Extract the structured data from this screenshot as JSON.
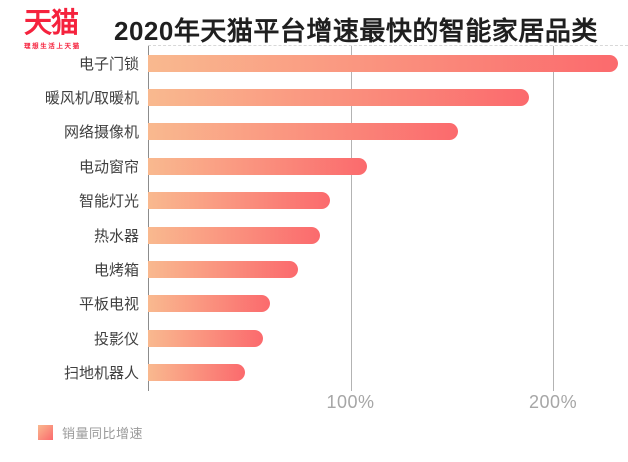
{
  "header": {
    "logo": {
      "text": "天猫",
      "subtext": "理想生活上天猫",
      "brand_color": "#f5223d"
    },
    "title": "2020年天猫平台增速最快的智能家居品类"
  },
  "chart_data": {
    "type": "bar",
    "orientation": "horizontal",
    "title": "2020年天猫平台增速最快的智能家居品类",
    "categories": [
      "电子门锁",
      "暖风机/取暖机",
      "网络摄像机",
      "电动窗帘",
      "智能灯光",
      "热水器",
      "电烤箱",
      "平板电视",
      "投影仪",
      "扫地机器人"
    ],
    "values": [
      232,
      188,
      153,
      108,
      90,
      85,
      74,
      60,
      57,
      48
    ],
    "unit": "%",
    "xlabel": "",
    "ylabel": "",
    "xlim": [
      0,
      237
    ],
    "x_ticks": [
      "100%",
      "200%"
    ],
    "x_tick_values": [
      100,
      200
    ],
    "grid": true,
    "legend_position": "bottom-left",
    "bar_gradient": [
      "#f9b98f",
      "#fb6a6d"
    ],
    "gridline_color": "#b3b3b3",
    "axis_line_color": "#8c8c8c"
  },
  "legend": {
    "label": "销量同比增速"
  }
}
